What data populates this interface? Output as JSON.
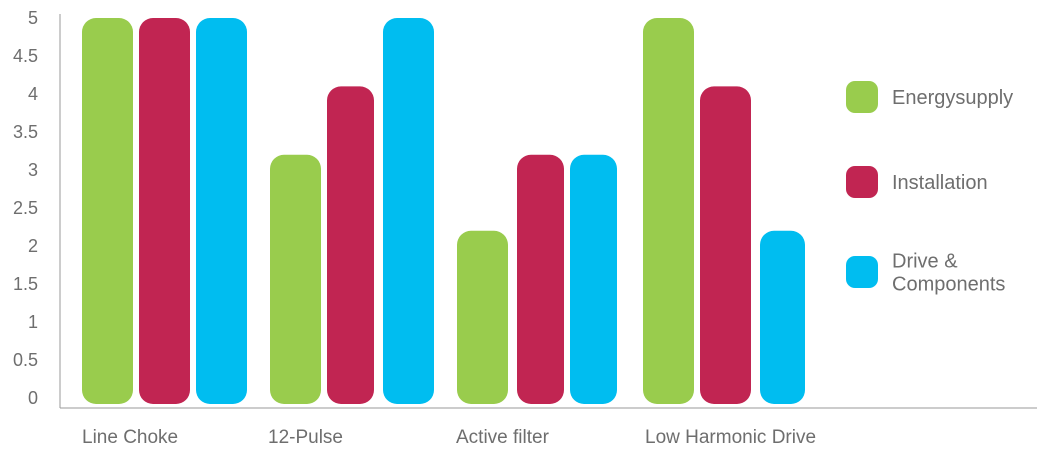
{
  "chart_data": {
    "type": "bar",
    "title": "",
    "xlabel": "",
    "ylabel": "",
    "ylim": [
      0,
      5
    ],
    "yticks": [
      "0",
      "0.5",
      "1",
      "1.5",
      "2",
      "2.5",
      "3",
      "3.5",
      "4",
      "4.5",
      "5"
    ],
    "categories": [
      "Line Choke",
      "12-Pulse",
      "Active filter",
      "Low Harmonic Drive"
    ],
    "series": [
      {
        "name": "Energysupply",
        "color": "#99cc4d",
        "values": [
          5,
          3.2,
          2.2,
          5
        ]
      },
      {
        "name": "Installation",
        "color": "#c12552",
        "values": [
          5,
          4.1,
          3.2,
          4.1
        ]
      },
      {
        "name": "Drive & Components",
        "color": "#00bdf0",
        "values": [
          5,
          5,
          3.2,
          2.2
        ]
      }
    ],
    "grid": false,
    "legend_position": "right"
  }
}
